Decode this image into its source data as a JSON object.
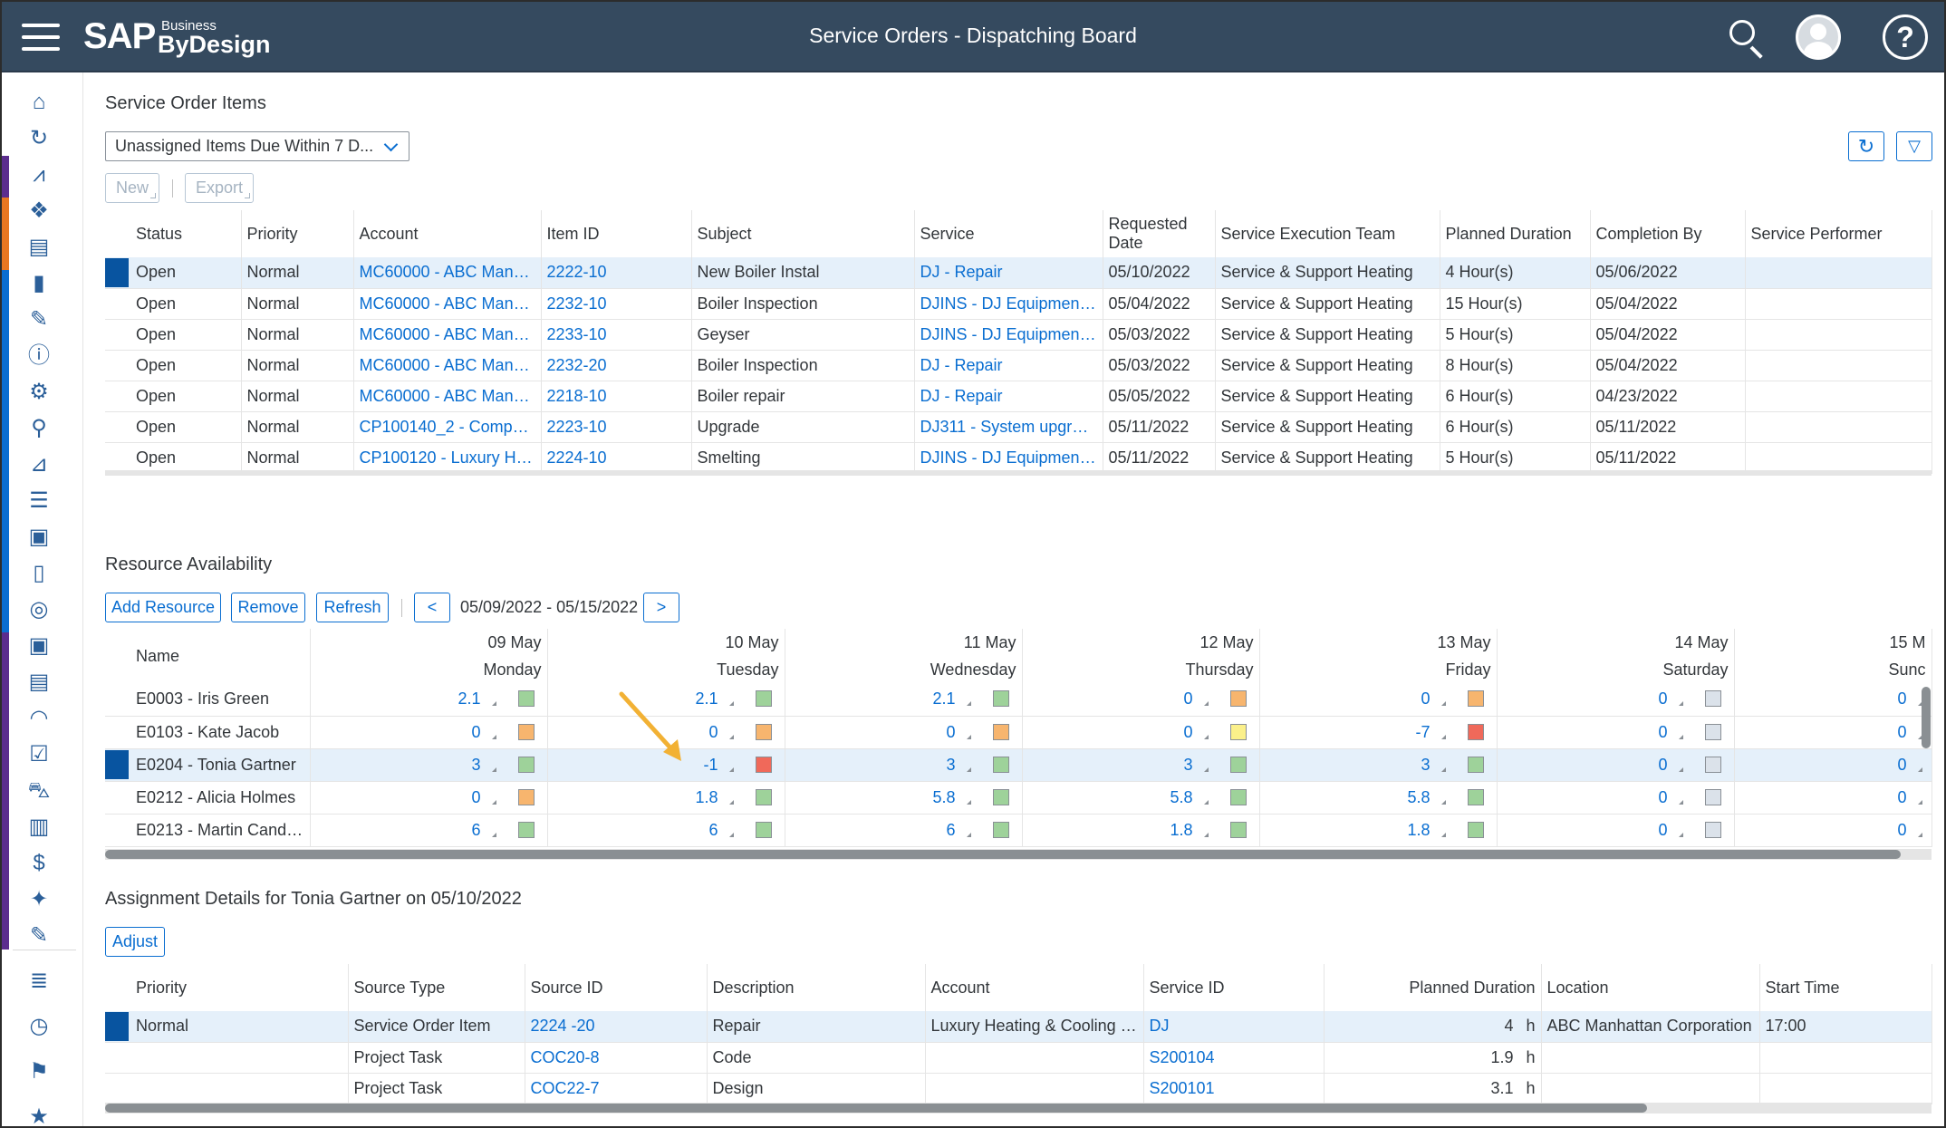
{
  "shell": {
    "logo_sap": "SAP",
    "logo_business": "Business",
    "logo_bydesign": "ByDesign",
    "title": "Service Orders - Dispatching Board",
    "icons": [
      "menu-icon",
      "search-icon",
      "user-avatar",
      "help-icon"
    ]
  },
  "nav": {
    "icons": [
      "home-icon",
      "refresh-arrow-icon",
      "chart-icon",
      "analytics-icon",
      "report-icon",
      "bar-chart-icon",
      "pen-tool-icon",
      "info-icon",
      "gears-icon",
      "org-chart-icon",
      "megaphone-icon",
      "user-list-icon",
      "contact-card-icon",
      "document-icon",
      "globe-doc-icon",
      "contact-doc-icon",
      "clipboard-icon",
      "headset-icon",
      "checklist-icon",
      "car-icon",
      "documents-icon",
      "money-icon",
      "handshake-icon",
      "edit-doc-icon",
      "list-icon",
      "clock-icon",
      "flag-icon",
      "star-icon"
    ],
    "stripe_colors": [
      "#5b2d8e",
      "#e87722",
      "#0a6ed1",
      "#5b2d8e"
    ]
  },
  "orders": {
    "title": "Service Order Items",
    "filter_value": "Unassigned Items Due Within 7 D...",
    "new_label": "New",
    "export_label": "Export",
    "columns": [
      "Status",
      "Priority",
      "Account",
      "Item ID",
      "Subject",
      "Service",
      "Requested Date",
      "Service Execution Team",
      "Planned Duration",
      "Completion By",
      "Service Performer"
    ],
    "rows": [
      {
        "status": "Open",
        "priority": "Normal",
        "account": "MC60000 - ABC Manh...",
        "item_id": "2222-10",
        "subject": "New Boiler Instal",
        "service": "DJ - Repair",
        "requested": "05/10/2022",
        "team": "Service & Support Heating",
        "duration": "4 Hour(s)",
        "completion": "05/06/2022",
        "performer": ""
      },
      {
        "status": "Open",
        "priority": "Normal",
        "account": "MC60000 - ABC Manh...",
        "item_id": "2232-10",
        "subject": "Boiler Inspection",
        "service": "DJINS - DJ Equipment ...",
        "requested": "05/04/2022",
        "team": "Service & Support Heating",
        "duration": "15 Hour(s)",
        "completion": "05/04/2022",
        "performer": ""
      },
      {
        "status": "Open",
        "priority": "Normal",
        "account": "MC60000 - ABC Manh...",
        "item_id": "2233-10",
        "subject": "Geyser",
        "service": "DJINS - DJ Equipment ...",
        "requested": "05/03/2022",
        "team": "Service & Support Heating",
        "duration": "5 Hour(s)",
        "completion": "05/04/2022",
        "performer": ""
      },
      {
        "status": "Open",
        "priority": "Normal",
        "account": "MC60000 - ABC Manh...",
        "item_id": "2232-20",
        "subject": "Boiler Inspection",
        "service": "DJ - Repair",
        "requested": "05/03/2022",
        "team": "Service & Support Heating",
        "duration": "8 Hour(s)",
        "completion": "05/04/2022",
        "performer": ""
      },
      {
        "status": "Open",
        "priority": "Normal",
        "account": "MC60000 - ABC Manh...",
        "item_id": "2218-10",
        "subject": "Boiler repair",
        "service": "DJ - Repair",
        "requested": "05/05/2022",
        "team": "Service & Support Heating",
        "duration": "6 Hour(s)",
        "completion": "04/23/2022",
        "performer": ""
      },
      {
        "status": "Open",
        "priority": "Normal",
        "account": "CP100140_2 - Comput...",
        "item_id": "2223-10",
        "subject": "Upgrade",
        "service": "DJ311 - System upgrade",
        "requested": "05/11/2022",
        "team": "Service & Support Heating",
        "duration": "6 Hour(s)",
        "completion": "05/11/2022",
        "performer": ""
      },
      {
        "status": "Open",
        "priority": "Normal",
        "account": "CP100120 - Luxury He...",
        "item_id": "2224-10",
        "subject": "Smelting",
        "service": "DJINS - DJ Equipment ...",
        "requested": "05/11/2022",
        "team": "Service & Support Heating",
        "duration": "5 Hour(s)",
        "completion": "05/11/2022",
        "performer": ""
      }
    ]
  },
  "resources": {
    "title": "Resource Availability",
    "add_label": "Add Resource",
    "remove_label": "Remove",
    "refresh_label": "Refresh",
    "prev_label": "<",
    "next_label": ">",
    "date_range": "05/09/2022 - 05/15/2022",
    "name_header": "Name",
    "days": [
      {
        "date": "09 May",
        "weekday": "Monday"
      },
      {
        "date": "10 May",
        "weekday": "Tuesday"
      },
      {
        "date": "11 May",
        "weekday": "Wednesday"
      },
      {
        "date": "12 May",
        "weekday": "Thursday"
      },
      {
        "date": "13 May",
        "weekday": "Friday"
      },
      {
        "date": "14 May",
        "weekday": "Saturday"
      },
      {
        "date": "15 M",
        "weekday": "Sunc"
      }
    ],
    "status_colors": {
      "green": "#9ed29a",
      "orange": "#f7b56e",
      "yellow": "#fbf08a",
      "red": "#f0695a",
      "grey": "#dbe2ea"
    },
    "rows": [
      {
        "name": "E0003 - Iris Green",
        "values": [
          "2.1",
          "2.1",
          "2.1",
          "0",
          "0",
          "0",
          "0"
        ],
        "status": [
          "green",
          "green",
          "green",
          "orange",
          "orange",
          "grey",
          "grey"
        ]
      },
      {
        "name": "E0103 - Kate Jacob",
        "values": [
          "0",
          "0",
          "0",
          "0",
          "-7",
          "0",
          "0"
        ],
        "status": [
          "orange",
          "orange",
          "orange",
          "yellow",
          "red",
          "grey",
          "grey"
        ]
      },
      {
        "name": "E0204 - Tonia Gartner",
        "values": [
          "3",
          "-1",
          "3",
          "3",
          "3",
          "0",
          "0"
        ],
        "status": [
          "green",
          "red",
          "green",
          "green",
          "green",
          "grey",
          "grey"
        ]
      },
      {
        "name": "E0212 - Alicia Holmes",
        "values": [
          "0",
          "1.8",
          "5.8",
          "5.8",
          "5.8",
          "0",
          "0"
        ],
        "status": [
          "orange",
          "green",
          "green",
          "green",
          "green",
          "grey",
          "grey"
        ]
      },
      {
        "name": "E0213 - Martin Candela",
        "values": [
          "6",
          "6",
          "6",
          "1.8",
          "1.8",
          "0",
          "0"
        ],
        "status": [
          "green",
          "green",
          "green",
          "green",
          "green",
          "grey",
          "grey"
        ]
      }
    ]
  },
  "assignment": {
    "title": "Assignment Details for Tonia Gartner on 05/10/2022",
    "adjust_label": "Adjust",
    "columns": [
      "Priority",
      "Source Type",
      "Source ID",
      "Description",
      "Account",
      "Service ID",
      "Planned Duration",
      "Location",
      "Start Time"
    ],
    "rows": [
      {
        "priority": "Normal",
        "source_type": "Service Order Item",
        "source_id": "2224 -20",
        "description": "Repair",
        "account": "Luxury Heating & Cooling Co",
        "service_id": "DJ",
        "duration": "4",
        "unit": "h",
        "location": "ABC Manhattan Corporation",
        "start": "17:00"
      },
      {
        "priority": "",
        "source_type": "Project Task",
        "source_id": "COC20-8",
        "description": "Code",
        "account": "",
        "service_id": "S200104",
        "duration": "1.9",
        "unit": "h",
        "location": "",
        "start": ""
      },
      {
        "priority": "",
        "source_type": "Project Task",
        "source_id": "COC22-7",
        "description": "Design",
        "account": "",
        "service_id": "S200101",
        "duration": "3.1",
        "unit": "h",
        "location": "",
        "start": ""
      }
    ]
  }
}
